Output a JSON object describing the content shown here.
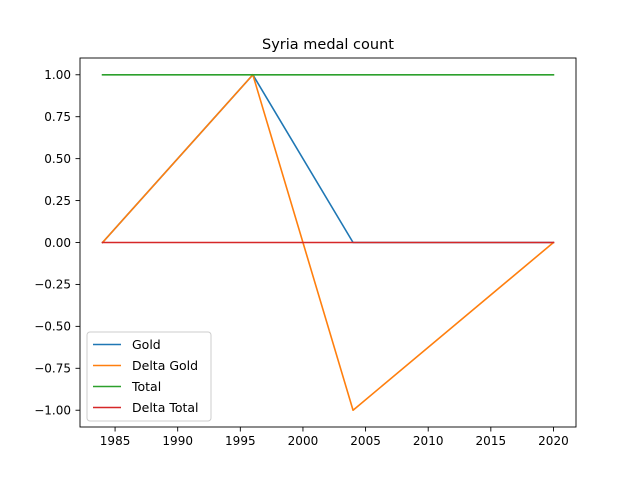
{
  "chart_data": {
    "type": "line",
    "title": "Syria medal count",
    "xlabel": "",
    "ylabel": "",
    "x": [
      1984,
      1996,
      2004,
      2020
    ],
    "xlim": [
      1982.2,
      2021.8
    ],
    "ylim": [
      -1.1,
      1.1
    ],
    "xticks": [
      1985,
      1990,
      1995,
      2000,
      2005,
      2010,
      2015,
      2020
    ],
    "yticks": [
      1.0,
      0.75,
      0.5,
      0.25,
      0.0,
      -0.25,
      -0.5,
      -0.75,
      -1.0
    ],
    "xtick_labels": [
      "1985",
      "1990",
      "1995",
      "2000",
      "2005",
      "2010",
      "2015",
      "2020"
    ],
    "ytick_labels": [
      "1.00",
      "0.75",
      "0.50",
      "0.25",
      "0.00",
      "−0.25",
      "−0.50",
      "−0.75",
      "−1.00"
    ],
    "grid": false,
    "legend_position": "lower-left",
    "series": [
      {
        "name": "Gold",
        "color": "#1f77b4",
        "values": [
          0,
          1,
          0,
          0
        ]
      },
      {
        "name": "Delta Gold",
        "color": "#ff7f0e",
        "values": [
          0,
          1,
          -1,
          0
        ]
      },
      {
        "name": "Total",
        "color": "#2ca02c",
        "values": [
          1,
          1,
          1,
          1
        ]
      },
      {
        "name": "Delta Total",
        "color": "#d62728",
        "values": [
          0,
          0,
          0,
          0
        ]
      }
    ]
  }
}
